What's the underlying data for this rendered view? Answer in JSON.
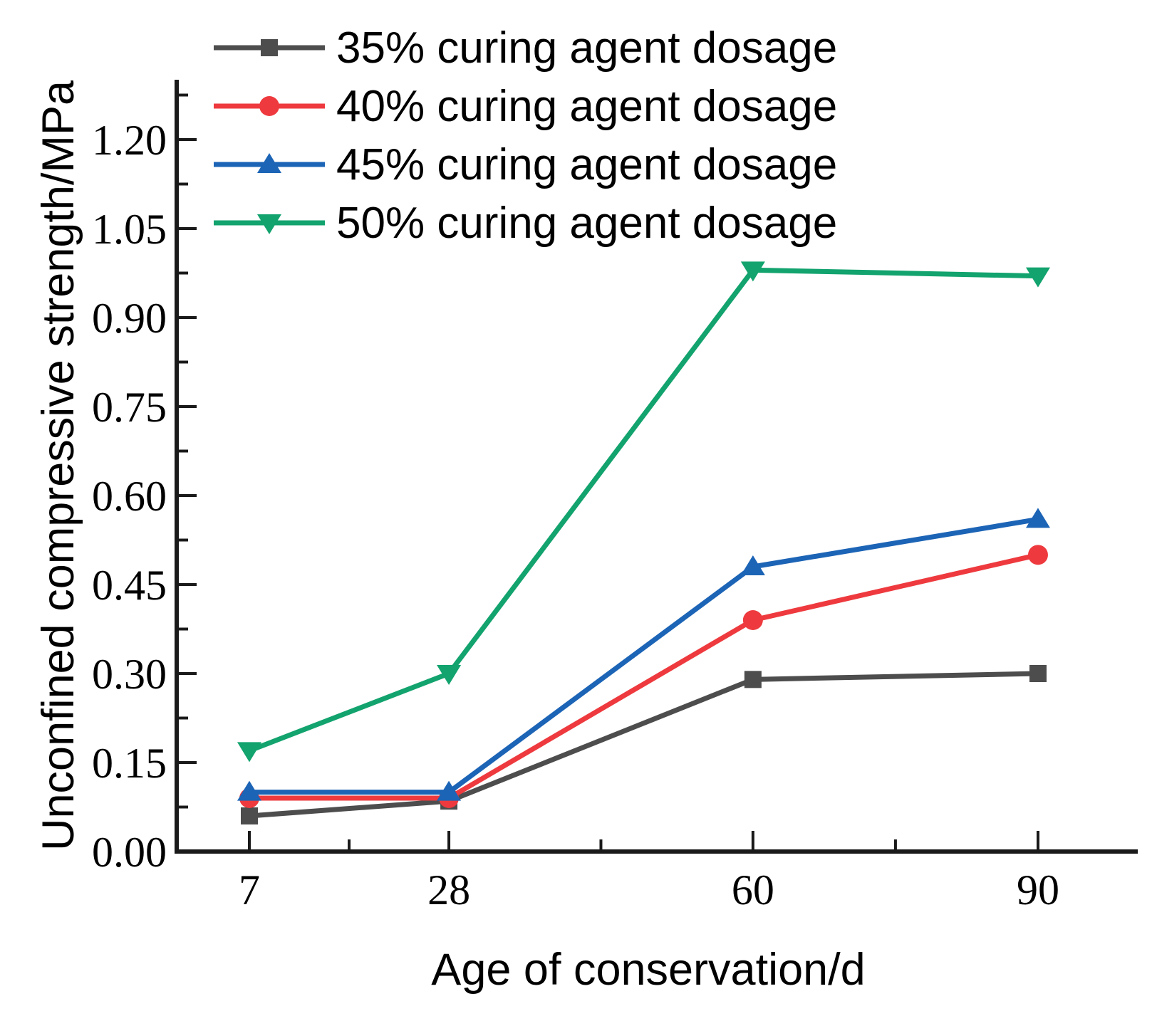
{
  "figure": {
    "background": "#ffffff"
  },
  "chart_data": {
    "type": "line",
    "title": "",
    "xlabel": "Age of conservation/d",
    "ylabel": "Unconfined compressive strength/MPa",
    "x": [
      7,
      28,
      60,
      90
    ],
    "x_tick_labels": [
      "7",
      "28",
      "60",
      "90"
    ],
    "x_minor_ticks": [
      17.5,
      44,
      75
    ],
    "y_ticks": [
      0.0,
      0.15,
      0.3,
      0.45,
      0.6,
      0.75,
      0.9,
      1.05,
      1.2
    ],
    "y_tick_labels": [
      "0.00",
      "0.15",
      "0.30",
      "0.45",
      "0.60",
      "0.75",
      "0.90",
      "1.05",
      "1.20"
    ],
    "y_minor_ticks": [
      0.075,
      0.225,
      0.375,
      0.525,
      0.675,
      0.825,
      0.975,
      1.125,
      1.275
    ],
    "xlim": [
      -1,
      100.5
    ],
    "ylim": [
      0,
      1.3
    ],
    "grid": false,
    "legend_position": "top-left",
    "axis_color": "#1a1a1a",
    "series": [
      {
        "name": "35% curing agent dosage",
        "marker": "square",
        "color": "#4d4d4d",
        "values": [
          0.06,
          0.085,
          0.29,
          0.3
        ]
      },
      {
        "name": "40% curing agent dosage",
        "marker": "circle",
        "color": "#ee3a3e",
        "values": [
          0.09,
          0.09,
          0.39,
          0.5
        ]
      },
      {
        "name": "45% curing agent dosage",
        "marker": "triangle-up",
        "color": "#1c64b6",
        "values": [
          0.1,
          0.1,
          0.48,
          0.56
        ]
      },
      {
        "name": "50% curing agent dosage",
        "marker": "triangle-down",
        "color": "#12a36e",
        "values": [
          0.17,
          0.3,
          0.98,
          0.97
        ]
      }
    ]
  }
}
